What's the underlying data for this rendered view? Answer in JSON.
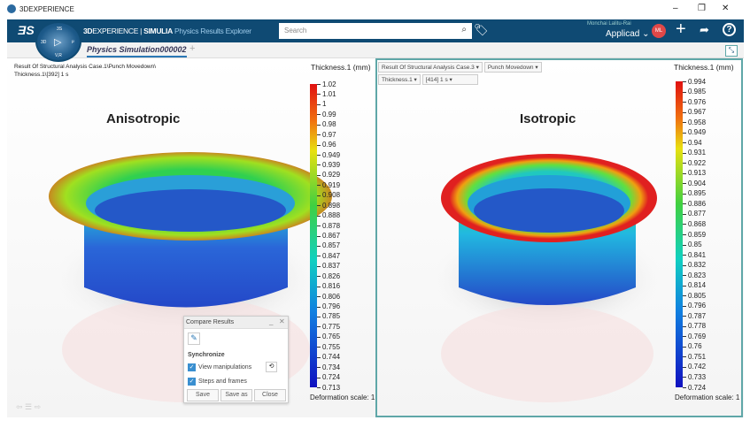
{
  "window": {
    "title": "3DEXPERIENCE",
    "min": "–",
    "max": "❐",
    "close": "✕"
  },
  "topbar": {
    "brand_bold": "3D",
    "brand_rest": "EXPERIENCE | ",
    "brand_simulia": "SIMULIA",
    "app": " Physics Results Explorer",
    "search_placeholder": "Search",
    "user": "Monchai Lalitu-Rai",
    "tenant": "Applicad",
    "avatar": "ML",
    "compass": {
      "top": "3S",
      "left": "3D",
      "right": "i²",
      "bottom": "V,R"
    }
  },
  "tabs": [
    {
      "label": "Physics Simulation000002",
      "active": true
    }
  ],
  "add_tab": "+",
  "left": {
    "path_line1": "Result Of Structural Analysis Case.1\\Punch Movedown\\",
    "path_line2": "Thickness.1\\[392]    1 s",
    "label": "Anisotropic",
    "legend_title": "Thickness.1 (mm)",
    "deformation": "Deformation scale: 1",
    "legend": [
      "1.02",
      "1.01",
      "1",
      "0.99",
      "0.98",
      "0.97",
      "0.96",
      "0.949",
      "0.939",
      "0.929",
      "0.919",
      "0.908",
      "0.898",
      "0.888",
      "0.878",
      "0.867",
      "0.857",
      "0.847",
      "0.837",
      "0.826",
      "0.816",
      "0.806",
      "0.796",
      "0.785",
      "0.775",
      "0.765",
      "0.755",
      "0.744",
      "0.734",
      "0.724",
      "0.713"
    ]
  },
  "right": {
    "case": "Result Of Structural Analysis Case.3",
    "step": "Punch Movedown",
    "result": "Thickness.1",
    "frame": "[414]   1 s",
    "label": "Isotropic",
    "legend_title": "Thickness.1 (mm)",
    "deformation": "Deformation scale: 1",
    "legend": [
      "0.994",
      "0.985",
      "0.976",
      "0.967",
      "0.958",
      "0.949",
      "0.94",
      "0.931",
      "0.922",
      "0.913",
      "0.904",
      "0.895",
      "0.886",
      "0.877",
      "0.868",
      "0.859",
      "0.85",
      "0.841",
      "0.832",
      "0.823",
      "0.814",
      "0.805",
      "0.796",
      "0.787",
      "0.778",
      "0.769",
      "0.76",
      "0.751",
      "0.742",
      "0.733",
      "0.724"
    ]
  },
  "compare": {
    "title": "Compare Results",
    "sync": "Synchronize",
    "view": "View manipulations",
    "steps": "Steps and frames",
    "save": "Save",
    "save_as": "Save as",
    "close": "Close",
    "view_checked": true,
    "steps_checked": true
  },
  "colors": {
    "topbar": "#0f4a73",
    "accent_border": "#5fa7a8",
    "avatar": "#e04848"
  }
}
